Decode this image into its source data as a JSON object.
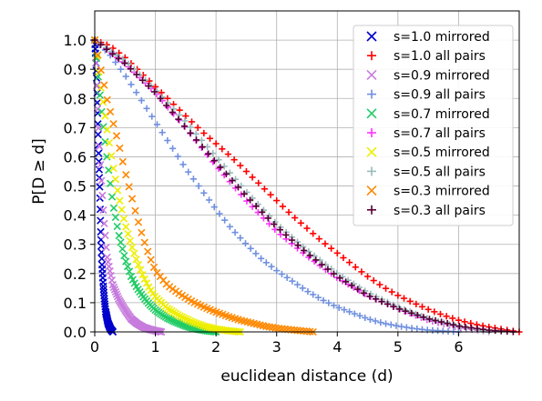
{
  "chart_data": {
    "type": "scatter",
    "title": "",
    "xlabel": "euclidean distance (d)",
    "ylabel": "P[D ≥ d]",
    "xlim": [
      0,
      7.0
    ],
    "ylim": [
      0,
      1.1
    ],
    "xticks": [
      "0",
      "1",
      "2",
      "3",
      "4",
      "5",
      "6"
    ],
    "yticks": [
      "0.0",
      "0.1",
      "0.2",
      "0.3",
      "0.4",
      "0.5",
      "0.6",
      "0.7",
      "0.8",
      "0.9",
      "1.0"
    ],
    "grid": true,
    "legend_position": "top-right",
    "series": [
      {
        "name": "s=1.0 mirrored",
        "marker": "x",
        "color": "#0000cc",
        "x": [
          0.0,
          0.02,
          0.04,
          0.06,
          0.08,
          0.1,
          0.12,
          0.14,
          0.16,
          0.18,
          0.2,
          0.22,
          0.24,
          0.26,
          0.28,
          0.3
        ],
        "y": [
          1.0,
          0.93,
          0.81,
          0.64,
          0.51,
          0.33,
          0.23,
          0.16,
          0.11,
          0.07,
          0.05,
          0.03,
          0.02,
          0.01,
          0.005,
          0.0
        ]
      },
      {
        "name": "s=1.0 all pairs",
        "marker": "+",
        "color": "#ff0000",
        "x": [
          0.0,
          0.25,
          0.5,
          0.75,
          1.0,
          1.25,
          1.5,
          1.75,
          2.0,
          2.25,
          2.5,
          2.75,
          3.0,
          3.25,
          3.5,
          3.75,
          4.0,
          4.25,
          4.5,
          4.75,
          5.0,
          5.25,
          5.5,
          5.75,
          6.0,
          6.25,
          6.5,
          6.75,
          7.0
        ],
        "y": [
          1.0,
          0.98,
          0.94,
          0.89,
          0.84,
          0.79,
          0.74,
          0.69,
          0.645,
          0.6,
          0.55,
          0.5,
          0.45,
          0.4,
          0.355,
          0.31,
          0.27,
          0.23,
          0.19,
          0.155,
          0.125,
          0.1,
          0.077,
          0.057,
          0.04,
          0.027,
          0.017,
          0.008,
          0.0
        ]
      },
      {
        "name": "s=0.9 mirrored",
        "marker": "x",
        "color": "#c77cdd",
        "x": [
          0.0,
          0.05,
          0.1,
          0.15,
          0.2,
          0.3,
          0.4,
          0.5,
          0.6,
          0.7,
          0.8,
          0.9,
          1.0,
          1.1
        ],
        "y": [
          1.0,
          0.75,
          0.55,
          0.39,
          0.26,
          0.16,
          0.11,
          0.075,
          0.045,
          0.028,
          0.016,
          0.009,
          0.004,
          0.0
        ]
      },
      {
        "name": "s=0.9 all pairs",
        "marker": "+",
        "color": "#7090e0",
        "x": [
          0.0,
          0.25,
          0.5,
          0.75,
          1.0,
          1.25,
          1.5,
          1.75,
          2.0,
          2.25,
          2.5,
          2.75,
          3.0,
          3.25,
          3.5,
          3.75,
          4.0,
          4.25,
          4.5,
          4.75,
          5.0,
          5.25,
          5.5,
          5.75,
          6.0
        ],
        "y": [
          1.0,
          0.95,
          0.88,
          0.8,
          0.72,
          0.64,
          0.56,
          0.49,
          0.42,
          0.355,
          0.3,
          0.25,
          0.21,
          0.175,
          0.14,
          0.11,
          0.085,
          0.065,
          0.045,
          0.03,
          0.02,
          0.012,
          0.006,
          0.003,
          0.0
        ]
      },
      {
        "name": "s=0.7 mirrored",
        "marker": "x",
        "color": "#22cc66",
        "x": [
          0.0,
          0.1,
          0.2,
          0.3,
          0.4,
          0.5,
          0.6,
          0.7,
          0.8,
          0.9,
          1.0,
          1.1,
          1.2,
          1.3,
          1.4,
          1.5,
          1.6,
          1.7,
          1.8,
          1.9,
          2.0
        ],
        "y": [
          1.0,
          0.78,
          0.6,
          0.44,
          0.33,
          0.25,
          0.19,
          0.15,
          0.12,
          0.095,
          0.075,
          0.06,
          0.047,
          0.037,
          0.028,
          0.02,
          0.014,
          0.009,
          0.005,
          0.002,
          0.0
        ]
      },
      {
        "name": "s=0.7 all pairs",
        "marker": "+",
        "color": "#ff33ff",
        "x": [
          0.0,
          0.5,
          1.0,
          1.5,
          2.0,
          2.5,
          3.0,
          3.5,
          4.0,
          4.5,
          5.0,
          5.5,
          6.0,
          6.5
        ],
        "y": [
          1.0,
          0.92,
          0.82,
          0.7,
          0.57,
          0.45,
          0.345,
          0.26,
          0.185,
          0.125,
          0.08,
          0.04,
          0.015,
          0.0
        ]
      },
      {
        "name": "s=0.5 mirrored",
        "marker": "x",
        "color": "#eeee00",
        "x": [
          0.0,
          0.1,
          0.2,
          0.3,
          0.4,
          0.5,
          0.6,
          0.7,
          0.8,
          0.9,
          1.0,
          1.2,
          1.4,
          1.6,
          1.8,
          2.0,
          2.2,
          2.4
        ],
        "y": [
          1.0,
          0.84,
          0.7,
          0.57,
          0.46,
          0.37,
          0.3,
          0.24,
          0.19,
          0.15,
          0.12,
          0.08,
          0.055,
          0.035,
          0.02,
          0.01,
          0.004,
          0.0
        ]
      },
      {
        "name": "s=0.5 all pairs",
        "marker": "+",
        "color": "#99bbbb",
        "x": [
          0.0,
          0.5,
          1.0,
          1.5,
          2.0,
          2.5,
          3.0,
          3.5,
          4.0,
          4.5,
          5.0,
          5.5,
          6.0,
          6.5
        ],
        "y": [
          1.0,
          0.93,
          0.83,
          0.72,
          0.6,
          0.48,
          0.37,
          0.28,
          0.2,
          0.135,
          0.085,
          0.045,
          0.018,
          0.0
        ]
      },
      {
        "name": "s=0.3 mirrored",
        "marker": "x",
        "color": "#ff8800",
        "x": [
          0.0,
          0.1,
          0.2,
          0.3,
          0.4,
          0.5,
          0.6,
          0.7,
          0.8,
          0.9,
          1.0,
          1.2,
          1.4,
          1.6,
          1.8,
          2.0,
          2.2,
          2.4,
          2.6,
          2.8,
          3.0,
          3.2,
          3.4,
          3.6
        ],
        "y": [
          1.0,
          0.9,
          0.8,
          0.72,
          0.64,
          0.55,
          0.47,
          0.39,
          0.32,
          0.26,
          0.21,
          0.16,
          0.13,
          0.105,
          0.085,
          0.068,
          0.053,
          0.04,
          0.03,
          0.02,
          0.013,
          0.008,
          0.004,
          0.0
        ]
      },
      {
        "name": "s=0.3 all pairs",
        "marker": "+",
        "color": "#550033",
        "x": [
          0.0,
          0.5,
          1.0,
          1.5,
          2.0,
          2.5,
          3.0,
          3.5,
          4.0,
          4.5,
          5.0,
          5.5,
          6.0,
          6.5,
          6.9
        ],
        "y": [
          1.0,
          0.92,
          0.82,
          0.7,
          0.58,
          0.465,
          0.36,
          0.27,
          0.19,
          0.125,
          0.08,
          0.045,
          0.02,
          0.006,
          0.0
        ]
      }
    ]
  }
}
